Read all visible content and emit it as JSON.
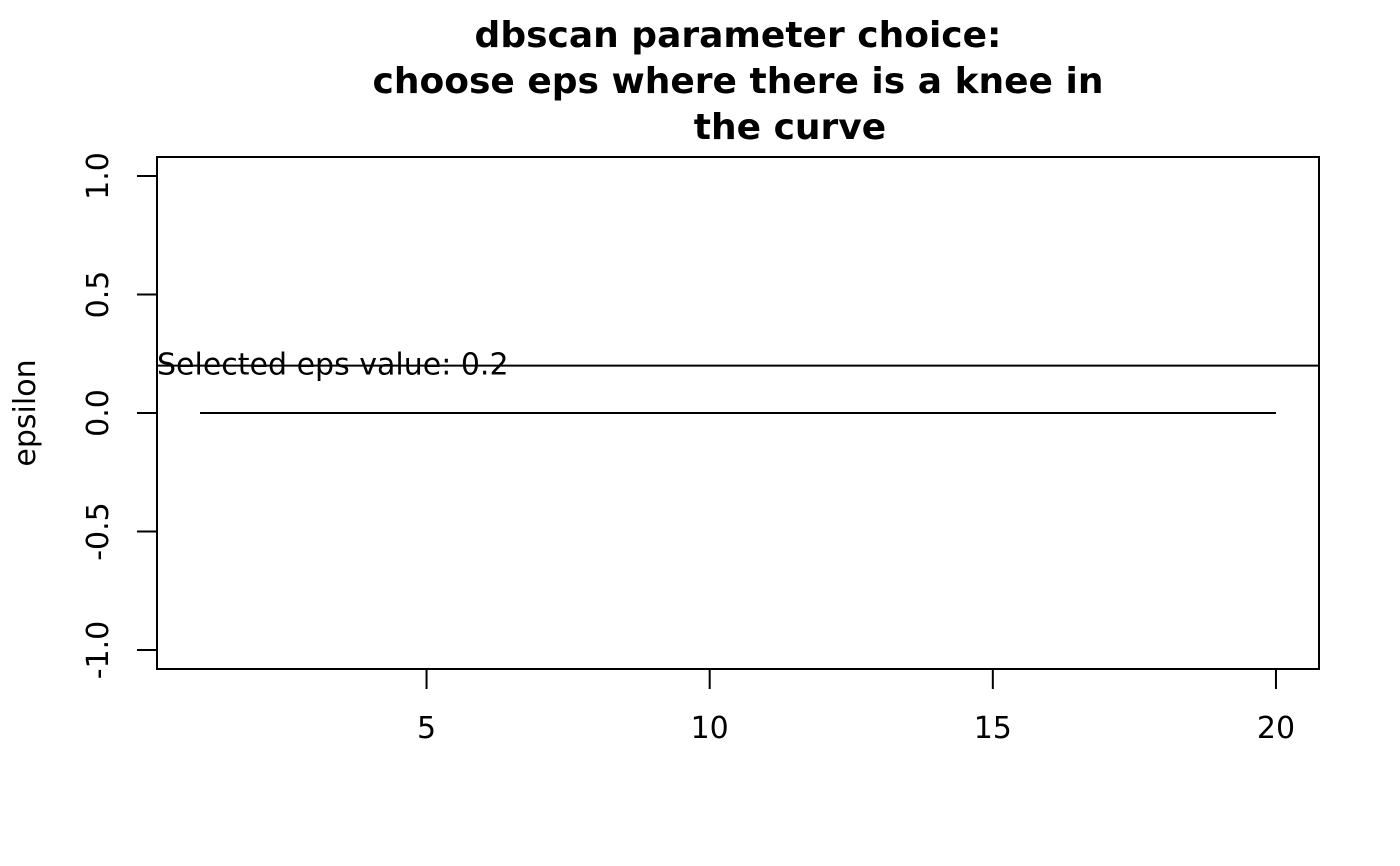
{
  "chart_data": {
    "type": "line",
    "title_lines": [
      "dbscan parameter choice:",
      "choose eps where there is a knee in",
      "the curve"
    ],
    "xlabel": "",
    "ylabel": "epsilon",
    "xlim": [
      0.24,
      20.76
    ],
    "ylim": [
      -1.08,
      1.08
    ],
    "x_ticks": [
      5,
      10,
      15,
      20
    ],
    "x_tick_labels": [
      "5",
      "10",
      "15",
      "20"
    ],
    "y_ticks": [
      -1.0,
      -0.5,
      0.0,
      0.5,
      1.0
    ],
    "y_tick_labels": [
      "-1.0",
      "-0.5",
      "0.0",
      "0.5",
      "1.0"
    ],
    "series": [
      {
        "x": [
          1,
          2,
          3,
          4,
          5,
          6,
          7,
          8,
          9,
          10,
          11,
          12,
          13,
          14,
          15,
          16,
          17,
          18,
          19,
          20
        ],
        "y": [
          0,
          0,
          0,
          0,
          0,
          0,
          0,
          0,
          0,
          0,
          0,
          0,
          0,
          0,
          0,
          0,
          0,
          0,
          0,
          0
        ]
      }
    ],
    "hline": {
      "y": 0.2
    },
    "annotation": {
      "text": "Selected eps value: 0.2",
      "x": 0.24,
      "y": 0.2
    },
    "grid": false,
    "legend": "none",
    "colors": {
      "line": "#000000",
      "background": "#ffffff"
    }
  }
}
